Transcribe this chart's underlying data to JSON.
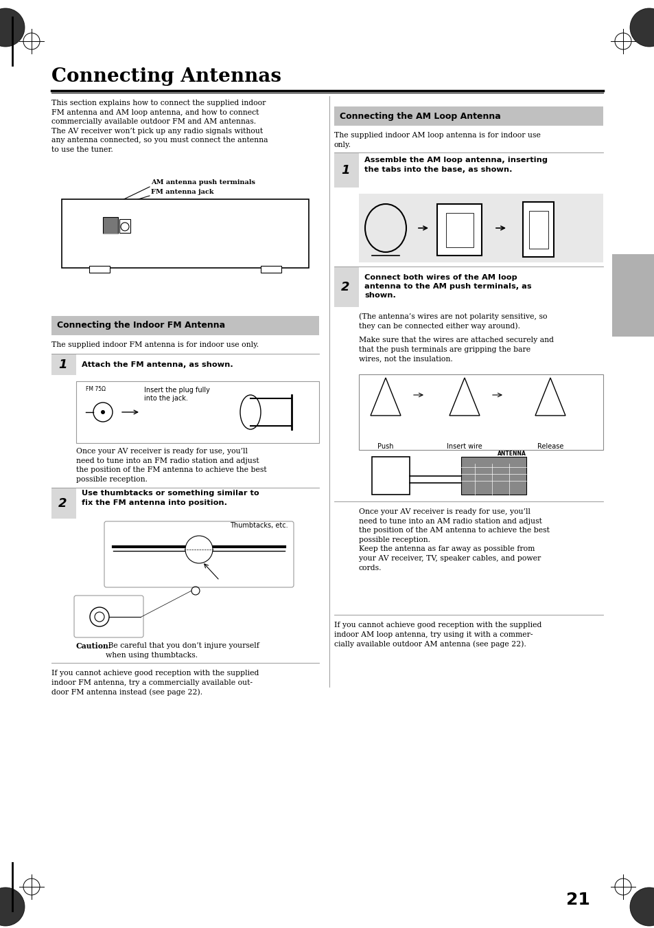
{
  "page_bg": "#ffffff",
  "page_num": "21",
  "title": "Connecting Antennas",
  "title_fontsize": 20,
  "body_fontsize": 7.8,
  "section_header_fontsize": 9,
  "step_num_fontsize": 13,
  "step_text_fontsize": 8.2,
  "caption_fontsize": 7,
  "section_bg": "#c0c0c0",
  "step_bg": "#d8d8d8",
  "diag_bg": "#e8e8e8",
  "right_gray_tab": "#b0b0b0",
  "body_text_left": "This section explains how to connect the supplied indoor\nFM antenna and AM loop antenna, and how to connect\ncommercially available outdoor FM and AM antennas.\nThe AV receiver won’t pick up any radio signals without\nany antenna connected, so you must connect the antenna\nto use the tuner.",
  "am_antenna_label": "AM antenna push terminals",
  "fm_jack_label": "FM antenna jack",
  "section_fm_label": "Connecting the Indoor FM Antenna",
  "fm_intro": "The supplied indoor FM antenna is for indoor use only.",
  "step1_fm_label": "Attach the FM antenna, as shown.",
  "fm_step1_note": "Insert the plug fully\ninto the jack.",
  "fm_step1_text": "Once your AV receiver is ready for use, you’ll\nneed to tune into an FM radio station and adjust\nthe position of the FM antenna to achieve the best\npossible reception.",
  "step2_fm_label": "Use thumbtacks or something similar to\nfix the FM antenna into position.",
  "fm_caution_bold": "Caution:",
  "fm_caution_text": " Be careful that you don’t injure yourself\nwhen using thumbtacks.",
  "fm_outdoor_text": "If you cannot achieve good reception with the supplied\nindoor FM antenna, try a commercially available out-\ndoor FM antenna instead (see page 22).",
  "section_am_label": "Connecting the AM Loop Antenna",
  "am_intro": "The supplied indoor AM loop antenna is for indoor use\nonly.",
  "step1_am_label": "Assemble the AM loop antenna, inserting\nthe tabs into the base, as shown.",
  "step2_am_label": "Connect both wires of the AM loop\nantenna to the AM push terminals, as\nshown.",
  "am_step2_text1": "(The antenna’s wires are not polarity sensitive, so\nthey can be connected either way around).",
  "am_step2_text2": "Make sure that the wires are attached securely and\nthat the push terminals are gripping the bare\nwires, not the insulation.",
  "am_step2_text3": "Once your AV receiver is ready for use, you’ll\nneed to tune into an AM radio station and adjust\nthe position of the AM antenna to achieve the best\npossible reception.\nKeep the antenna as far away as possible from\nyour AV receiver, TV, speaker cables, and power\ncords.",
  "push_label": "Push",
  "insert_label": "Insert wire",
  "release_label": "Release",
  "antenna_label_am": "ANTENNA",
  "am_outdoor_text": "If you cannot achieve good reception with the supplied\nindoor AM loop antenna, try using it with a commer-\ncially available outdoor AM antenna (see page 22)."
}
